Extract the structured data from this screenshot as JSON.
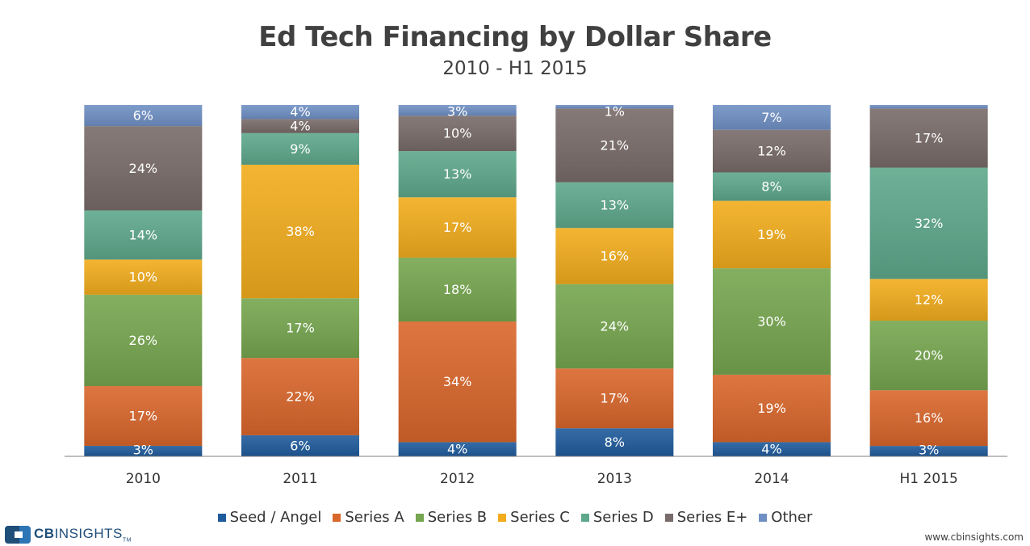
{
  "title": "Ed Tech Financing by Dollar Share",
  "subtitle": "2010 - H1 2015",
  "source": "www.cbinsights.com",
  "logo": {
    "brand_bold": "CB",
    "brand_rest": "INSIGHTS",
    "tm": "TM"
  },
  "chart_data": {
    "type": "bar",
    "stacked": true,
    "title": "Ed Tech Financing by Dollar Share",
    "subtitle": "2010 - H1 2015",
    "categories": [
      "2010",
      "2011",
      "2012",
      "2013",
      "2014",
      "H1 2015"
    ],
    "ylim": [
      0,
      100
    ],
    "grid": false,
    "legend_position": "bottom",
    "series": [
      {
        "name": "Seed / Angel",
        "color": "#1f5b9c",
        "values": [
          3,
          6,
          4,
          8,
          4,
          3
        ],
        "labels": [
          "3%",
          "6%",
          "4%",
          "8%",
          "4%",
          "3%"
        ]
      },
      {
        "name": "Series A",
        "color": "#d9662b",
        "values": [
          17,
          22,
          34,
          17,
          19,
          16
        ],
        "labels": [
          "17%",
          "22%",
          "34%",
          "17%",
          "19%",
          "16%"
        ]
      },
      {
        "name": "Series B",
        "color": "#76a64f",
        "values": [
          26,
          17,
          18,
          24,
          30,
          20
        ],
        "labels": [
          "26%",
          "17%",
          "18%",
          "24%",
          "30%",
          "20%"
        ]
      },
      {
        "name": "Series C",
        "color": "#f2ac1c",
        "values": [
          10,
          38,
          17,
          16,
          19,
          12
        ],
        "labels": [
          "10%",
          "38%",
          "17%",
          "16%",
          "19%",
          "12%"
        ]
      },
      {
        "name": "Series D",
        "color": "#5ea88c",
        "values": [
          14,
          9,
          13,
          13,
          8,
          32
        ],
        "labels": [
          "14%",
          "9%",
          "13%",
          "13%",
          "8%",
          "32%"
        ]
      },
      {
        "name": "Series E+",
        "color": "#786b69",
        "values": [
          24,
          4,
          10,
          21,
          12,
          17
        ],
        "labels": [
          "24%",
          "4%",
          "10%",
          "21%",
          "12%",
          "17%"
        ]
      },
      {
        "name": "Other",
        "color": "#6f90c4",
        "values": [
          6,
          4,
          3,
          1,
          7,
          1
        ],
        "labels": [
          "6%",
          "4%",
          "3%",
          "1%",
          "7%",
          ""
        ]
      }
    ]
  }
}
